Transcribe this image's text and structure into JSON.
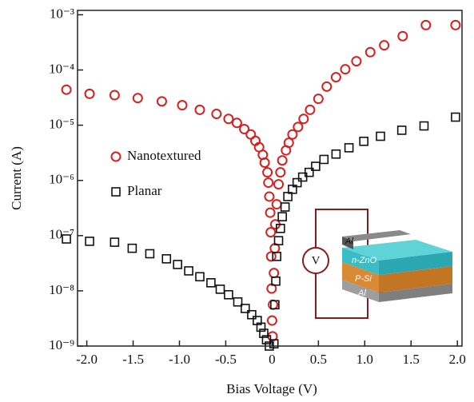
{
  "chart_data": {
    "type": "scatter",
    "x_label": "Bias Voltage (V)",
    "y_label": "Current (A)",
    "yscale": "log",
    "legend": "center left",
    "xlim": [
      -2.1,
      2.05
    ],
    "ylim": [
      1e-09,
      0.0012
    ],
    "xticks": [
      {
        "value": -2,
        "label": "-2.0"
      },
      {
        "value": -1.5,
        "label": "-1.5"
      },
      {
        "value": -1,
        "label": "-1.0"
      },
      {
        "value": -0.5,
        "label": "-0.5"
      },
      0,
      0.5,
      {
        "value": 1,
        "label": "1.0"
      },
      1.5,
      {
        "value": 2,
        "label": "2.0"
      }
    ],
    "yticks": [
      {
        "value": 1e-09,
        "label": "10⁻⁹"
      },
      {
        "value": 1e-08,
        "label": "10⁻⁸"
      },
      {
        "value": 1e-07,
        "label": "10⁻⁷"
      },
      {
        "value": 1e-06,
        "label": "10⁻⁶"
      },
      {
        "value": 1e-05,
        "label": "10⁻⁵"
      },
      {
        "value": 0.0001,
        "label": "10⁻⁴"
      },
      {
        "value": 0.001,
        "label": "10⁻³"
      }
    ],
    "series": [
      {
        "name": "Nanotextured",
        "color": "#d42020",
        "marker": "circle",
        "x": [
          -2.22,
          -1.97,
          -1.7,
          -1.45,
          -1.19,
          -0.97,
          -0.78,
          -0.6,
          -0.47,
          -0.38,
          -0.3,
          -0.23,
          -0.18,
          -0.14,
          -0.1,
          -0.08,
          -0.05,
          -0.04,
          -0.03,
          -0.02,
          -0.015,
          -0.01,
          -0.005,
          0,
          0.005,
          0.01,
          0.02,
          0.03,
          0.035,
          0.05,
          0.07,
          0.09,
          0.11,
          0.15,
          0.18,
          0.22,
          0.28,
          0.34,
          0.41,
          0.5,
          0.59,
          0.69,
          0.79,
          0.91,
          1.06,
          1.21,
          1.41,
          1.66,
          1.98
        ],
        "values": [
          4.4e-05,
          3.7e-05,
          3.5e-05,
          3.1e-05,
          2.7e-05,
          2.3e-05,
          1.9e-05,
          1.6e-05,
          1.3e-05,
          1.1e-05,
          8.5e-06,
          6.8e-06,
          5.2e-06,
          4e-06,
          2.9e-06,
          2.1e-06,
          1.4e-06,
          9.1e-07,
          5.1e-07,
          2.6e-07,
          1.15e-07,
          4.2e-08,
          1.1e-08,
          2.9e-09,
          1.5e-09,
          5.6e-09,
          2.1e-08,
          5.9e-08,
          1.6e-07,
          3.7e-07,
          8.5e-07,
          1.4e-06,
          2.3e-06,
          3.5e-06,
          4.8e-06,
          6.8e-06,
          9.3e-06,
          1.3e-05,
          1.9e-05,
          3e-05,
          5e-05,
          7.4e-05,
          0.000103,
          0.000144,
          0.00021,
          0.00028,
          0.00041,
          0.00065,
          0.00065
        ]
      },
      {
        "name": "Planar",
        "color": "#111111",
        "marker": "square",
        "x": [
          -2.22,
          -1.97,
          -1.7,
          -1.51,
          -1.32,
          -1.14,
          -1.02,
          -0.9,
          -0.78,
          -0.66,
          -0.56,
          -0.47,
          -0.37,
          -0.29,
          -0.22,
          -0.16,
          -0.12,
          -0.09,
          -0.06,
          -0.03,
          0.02,
          0.03,
          0.04,
          0.05,
          0.07,
          0.09,
          0.11,
          0.14,
          0.17,
          0.22,
          0.27,
          0.33,
          0.4,
          0.47,
          0.56,
          0.69,
          0.83,
          0.99,
          1.17,
          1.4,
          1.64,
          1.98
        ],
        "values": [
          8.7e-08,
          7.9e-08,
          7.6e-08,
          5.9e-08,
          4.7e-08,
          3.8e-08,
          3e-08,
          2.3e-08,
          1.8e-08,
          1.4e-08,
          1.07e-08,
          8.5e-09,
          6.3e-09,
          4.8e-09,
          3.7e-09,
          2.9e-09,
          2.2e-09,
          1.7e-09,
          1.3e-09,
          1e-09,
          1.1e-09,
          5.6e-09,
          1.5e-08,
          4.2e-08,
          8.1e-08,
          1.35e-07,
          2.2e-07,
          3.3e-07,
          5.1e-07,
          6.9e-07,
          9.1e-07,
          1.15e-06,
          1.4e-06,
          1.8e-06,
          2.4e-06,
          3e-06,
          3.9e-06,
          5.1e-06,
          6.3e-06,
          8.1e-06,
          9.7e-06,
          1.4e-05
        ]
      }
    ],
    "annotations": [
      "V",
      "Al",
      "n-ZnO",
      "P-Si",
      "Al"
    ]
  }
}
